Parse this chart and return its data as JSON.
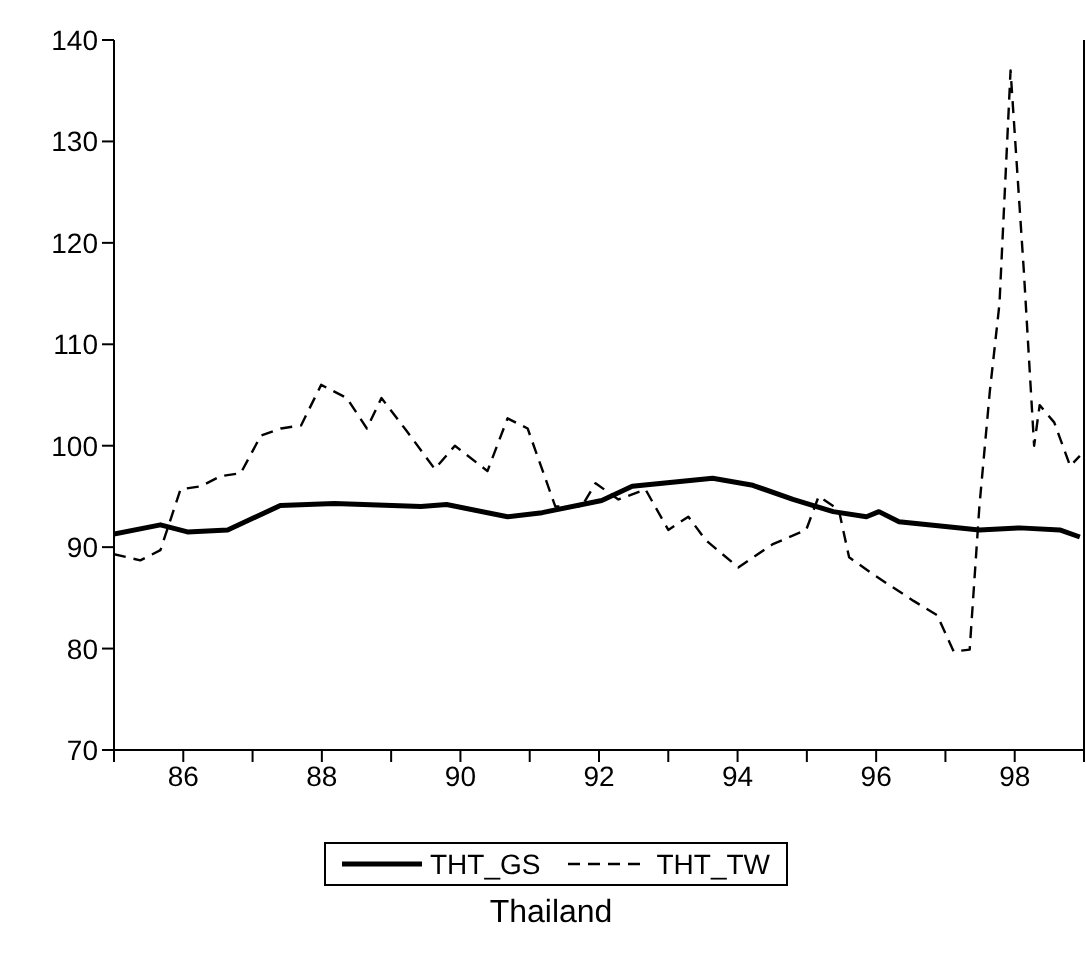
{
  "chart_data": {
    "type": "line",
    "title": "Thailand",
    "xlim": [
      85,
      99
    ],
    "ylim": [
      70,
      140
    ],
    "xticks": [
      {
        "value": 85,
        "label": null
      },
      86,
      {
        "value": 87,
        "label": null
      },
      88,
      {
        "value": 89,
        "label": null
      },
      90,
      {
        "value": 91,
        "label": null
      },
      92,
      {
        "value": 93,
        "label": null
      },
      94,
      {
        "value": 95,
        "label": null
      },
      96,
      {
        "value": 97,
        "label": null
      },
      98,
      {
        "value": 99,
        "label": null
      }
    ],
    "yticks": [
      70,
      80,
      90,
      100,
      110,
      120,
      130,
      140
    ],
    "legend": "bottom",
    "marker": "none",
    "series": [
      {
        "name": "THT_GS",
        "color": "#000000",
        "line_style": "solid",
        "x": [
          85.0,
          85.67,
          86.06,
          86.64,
          87.4,
          88.18,
          89.43,
          89.8,
          90.68,
          91.18,
          92.04,
          92.48,
          93.64,
          94.22,
          94.8,
          95.38,
          95.86,
          96.04,
          96.33,
          97.49,
          98.07,
          98.65,
          98.94
        ],
        "values": [
          91.3,
          92.2,
          91.5,
          91.7,
          94.1,
          94.3,
          94.0,
          94.2,
          93.0,
          93.4,
          94.6,
          96.0,
          96.8,
          96.1,
          94.7,
          93.5,
          93.0,
          93.5,
          92.5,
          91.7,
          91.9,
          91.7,
          91.0
        ]
      },
      {
        "name": "THT_TW",
        "color": "#000000",
        "line_style": "dashed",
        "x": [
          85.0,
          85.38,
          85.67,
          85.96,
          86.25,
          86.54,
          86.83,
          87.12,
          87.41,
          87.7,
          87.99,
          88.36,
          88.65,
          88.86,
          89.23,
          89.63,
          89.92,
          90.39,
          90.68,
          90.97,
          91.37,
          91.75,
          91.95,
          92.28,
          92.67,
          93.0,
          93.29,
          93.54,
          94.01,
          94.51,
          94.99,
          95.17,
          95.46,
          95.61,
          95.96,
          96.54,
          96.88,
          97.12,
          97.35,
          97.49,
          97.64,
          97.78,
          97.94,
          98.13,
          98.28,
          98.36,
          98.57,
          98.8,
          98.94
        ],
        "values": [
          89.3,
          88.7,
          89.7,
          95.7,
          96.0,
          97.0,
          97.3,
          101.0,
          101.7,
          102.0,
          106.0,
          104.7,
          101.7,
          104.7,
          101.4,
          97.7,
          100.0,
          97.5,
          102.7,
          101.7,
          94.0,
          94.0,
          96.3,
          94.7,
          95.7,
          91.7,
          93.0,
          90.7,
          88.0,
          90.3,
          91.7,
          95.0,
          93.7,
          89.0,
          87.3,
          84.7,
          83.3,
          79.7,
          79.9,
          94.0,
          105.3,
          114.0,
          137.0,
          117.4,
          100.0,
          104.0,
          102.3,
          98.0,
          99.0
        ]
      }
    ]
  }
}
